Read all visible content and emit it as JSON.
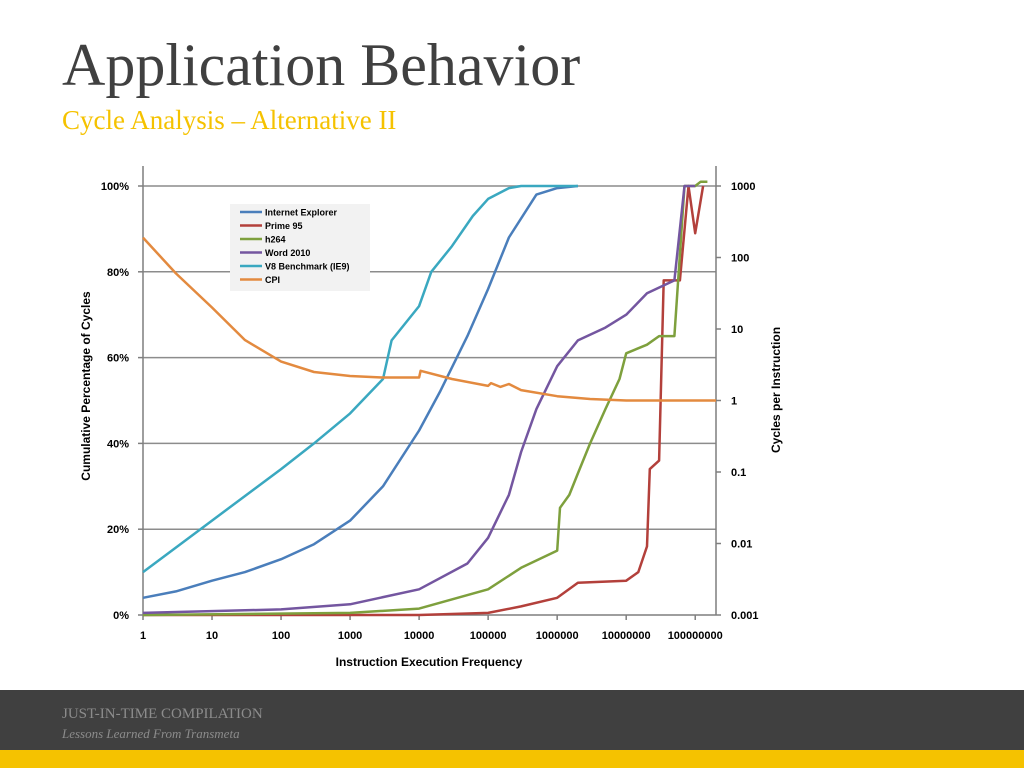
{
  "slide": {
    "title": "Application Behavior",
    "subtitle": "Cycle Analysis – Alternative II",
    "footer_title": "JUST-IN-TIME COMPILATION",
    "footer_subtitle": "Lessons Learned From Transmeta",
    "accent_color": "#f5c200",
    "footer_color": "#404040",
    "title_color": "#404040"
  },
  "chart_data": {
    "type": "line",
    "xlabel": "Instruction Execution Frequency",
    "ylabel": "Cumulative Percentage of Cycles",
    "y2label": "Cycles per Instruction",
    "xscale": "log",
    "xlim": [
      1,
      200000000
    ],
    "ylim": [
      0,
      100
    ],
    "y2scale": "log",
    "y2lim": [
      0.001,
      1000
    ],
    "x_ticks": [
      "1",
      "10",
      "100",
      "1000",
      "10000",
      "100000",
      "1000000",
      "10000000",
      "100000000"
    ],
    "y_ticks": [
      "0%",
      "20%",
      "40%",
      "60%",
      "80%",
      "100%"
    ],
    "y2_ticks": [
      "0.001",
      "0.01",
      "0.1",
      "1",
      "10",
      "100",
      "1000"
    ],
    "grid": "horizontal",
    "legend_position": "top-left",
    "series": [
      {
        "name": "Internet Explorer",
        "axis": "left",
        "color": "#4a7ebb",
        "points": [
          [
            1,
            4
          ],
          [
            3,
            5.5
          ],
          [
            10,
            8
          ],
          [
            30,
            10
          ],
          [
            100,
            13
          ],
          [
            300,
            16.5
          ],
          [
            1000,
            22
          ],
          [
            3000,
            30
          ],
          [
            10000,
            43
          ],
          [
            20000,
            52
          ],
          [
            50000,
            65
          ],
          [
            100000,
            76
          ],
          [
            200000,
            88
          ],
          [
            500000,
            98
          ],
          [
            1000000,
            99.5
          ],
          [
            2000000,
            100
          ]
        ]
      },
      {
        "name": "Prime 95",
        "axis": "left",
        "color": "#b3403b",
        "points": [
          [
            1,
            0
          ],
          [
            10000,
            0
          ],
          [
            100000,
            0.5
          ],
          [
            300000,
            2
          ],
          [
            1000000,
            4
          ],
          [
            2000000,
            7.5
          ],
          [
            10000000,
            8
          ],
          [
            15000000,
            10
          ],
          [
            20000000,
            16
          ],
          [
            22000000,
            34
          ],
          [
            30000000,
            36
          ],
          [
            35000000,
            78
          ],
          [
            60000000,
            78
          ],
          [
            80000000,
            100
          ],
          [
            100000000,
            89
          ],
          [
            130000000,
            100
          ]
        ]
      },
      {
        "name": "h264",
        "axis": "left",
        "color": "#7ea03d",
        "points": [
          [
            1,
            0
          ],
          [
            1000,
            0.5
          ],
          [
            10000,
            1.5
          ],
          [
            100000,
            6
          ],
          [
            300000,
            11
          ],
          [
            1000000,
            15
          ],
          [
            1100000,
            25
          ],
          [
            1500000,
            28
          ],
          [
            2000000,
            33
          ],
          [
            3000000,
            40
          ],
          [
            5000000,
            48
          ],
          [
            8000000,
            55
          ],
          [
            10000000,
            61
          ],
          [
            20000000,
            63
          ],
          [
            30000000,
            65
          ],
          [
            50000000,
            65
          ],
          [
            70000000,
            100
          ],
          [
            100000000,
            100
          ],
          [
            120000000,
            101
          ],
          [
            150000000,
            101
          ]
        ]
      },
      {
        "name": "Word 2010",
        "axis": "left",
        "color": "#7456a0",
        "points": [
          [
            1,
            0.5
          ],
          [
            100,
            1.3
          ],
          [
            1000,
            2.5
          ],
          [
            10000,
            6
          ],
          [
            50000,
            12
          ],
          [
            100000,
            18
          ],
          [
            200000,
            28
          ],
          [
            300000,
            38
          ],
          [
            500000,
            48
          ],
          [
            1000000,
            58
          ],
          [
            2000000,
            64
          ],
          [
            5000000,
            67
          ],
          [
            10000000,
            70
          ],
          [
            20000000,
            75
          ],
          [
            50000000,
            78
          ],
          [
            70000000,
            100
          ],
          [
            100000000,
            100
          ]
        ]
      },
      {
        "name": "V8 Benchmark (IE9)",
        "axis": "left",
        "color": "#3aa8c0",
        "points": [
          [
            1,
            10
          ],
          [
            10,
            22
          ],
          [
            100,
            34
          ],
          [
            300,
            40
          ],
          [
            1000,
            47
          ],
          [
            3000,
            55
          ],
          [
            4000,
            64
          ],
          [
            10000,
            72
          ],
          [
            15000,
            80
          ],
          [
            30000,
            86
          ],
          [
            60000,
            93
          ],
          [
            100000,
            97
          ],
          [
            200000,
            99.5
          ],
          [
            300000,
            100
          ],
          [
            2000000,
            100
          ]
        ]
      },
      {
        "name": "CPI",
        "axis": "right",
        "color": "#e38a3f",
        "points": [
          [
            1,
            190
          ],
          [
            3,
            60
          ],
          [
            10,
            20
          ],
          [
            30,
            7
          ],
          [
            100,
            3.5
          ],
          [
            300,
            2.5
          ],
          [
            1000,
            2.2
          ],
          [
            3000,
            2.1
          ],
          [
            10000,
            2.1
          ],
          [
            10500,
            2.6
          ],
          [
            30000,
            2
          ],
          [
            100000,
            1.6
          ],
          [
            110000,
            1.75
          ],
          [
            150000,
            1.55
          ],
          [
            200000,
            1.7
          ],
          [
            300000,
            1.4
          ],
          [
            1000000,
            1.15
          ],
          [
            3000000,
            1.05
          ],
          [
            10000000,
            1.0
          ],
          [
            100000000,
            1.0
          ],
          [
            200000000,
            1.0
          ]
        ]
      }
    ]
  }
}
